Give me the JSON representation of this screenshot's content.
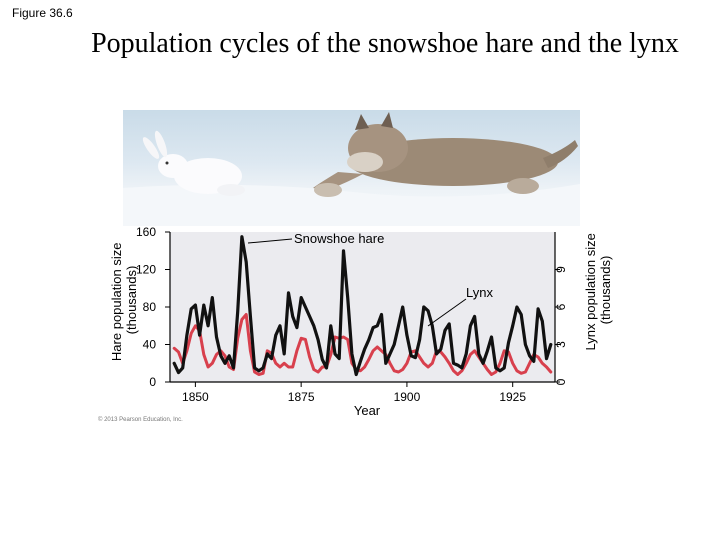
{
  "figure_label": "Figure 36.6",
  "title": "Population cycles of the snowshoe hare and the lynx",
  "copyright": "© 2013 Pearson Education, Inc.",
  "chart_data": {
    "type": "line",
    "xlabel": "Year",
    "ylabel_left": "Hare population size (thousands)",
    "ylabel_right": "Lynx population size (thousands)",
    "xlim": [
      1844,
      1935
    ],
    "ylim_left": [
      0,
      160
    ],
    "ylim_right": [
      0,
      12
    ],
    "x_ticks": [
      1850,
      1875,
      1900,
      1925
    ],
    "y_ticks_left": [
      0,
      40,
      80,
      120,
      160
    ],
    "y_ticks_right": [
      0,
      3,
      6,
      9
    ],
    "annotations": [
      "Snowshoe hare",
      "Lynx"
    ],
    "series": [
      {
        "name": "Snowshoe hare",
        "color": "#111111",
        "axis": "left",
        "x": [
          1845,
          1846,
          1847,
          1848,
          1849,
          1850,
          1851,
          1852,
          1853,
          1854,
          1855,
          1856,
          1857,
          1858,
          1859,
          1860,
          1861,
          1862,
          1863,
          1864,
          1865,
          1866,
          1867,
          1868,
          1869,
          1870,
          1871,
          1872,
          1873,
          1874,
          1875,
          1876,
          1877,
          1878,
          1879,
          1880,
          1881,
          1882,
          1883,
          1884,
          1885,
          1886,
          1887,
          1888,
          1889,
          1890,
          1891,
          1892,
          1893,
          1894,
          1895,
          1896,
          1897,
          1898,
          1899,
          1900,
          1901,
          1902,
          1903,
          1904,
          1905,
          1906,
          1907,
          1908,
          1909,
          1910,
          1911,
          1912,
          1913,
          1914,
          1915,
          1916,
          1917,
          1918,
          1919,
          1920,
          1921,
          1922,
          1923,
          1924,
          1925,
          1926,
          1927,
          1928,
          1929,
          1930,
          1931,
          1932,
          1933,
          1934
        ],
        "values": [
          20,
          10,
          15,
          50,
          78,
          82,
          50,
          82,
          60,
          90,
          48,
          28,
          20,
          28,
          15,
          75,
          155,
          128,
          70,
          15,
          12,
          15,
          30,
          25,
          50,
          60,
          30,
          95,
          70,
          58,
          90,
          80,
          70,
          60,
          45,
          24,
          15,
          60,
          30,
          25,
          140,
          90,
          30,
          8,
          22,
          35,
          45,
          58,
          60,
          72,
          20,
          30,
          40,
          60,
          80,
          50,
          28,
          26,
          45,
          80,
          76,
          60,
          30,
          35,
          55,
          62,
          20,
          18,
          15,
          30,
          60,
          70,
          30,
          20,
          33,
          48,
          15,
          12,
          15,
          42,
          60,
          80,
          72,
          40,
          28,
          22,
          78,
          65,
          25,
          40
        ]
      },
      {
        "name": "Lynx",
        "color": "#d8404d",
        "axis": "right",
        "x": [
          1845,
          1846,
          1847,
          1848,
          1849,
          1850,
          1851,
          1852,
          1853,
          1854,
          1855,
          1856,
          1857,
          1858,
          1859,
          1860,
          1861,
          1862,
          1863,
          1864,
          1865,
          1866,
          1867,
          1868,
          1869,
          1870,
          1871,
          1872,
          1873,
          1874,
          1875,
          1876,
          1877,
          1878,
          1879,
          1880,
          1881,
          1882,
          1883,
          1884,
          1885,
          1886,
          1887,
          1888,
          1889,
          1890,
          1891,
          1892,
          1893,
          1894,
          1895,
          1896,
          1897,
          1898,
          1899,
          1900,
          1901,
          1902,
          1903,
          1904,
          1905,
          1906,
          1907,
          1908,
          1909,
          1910,
          1911,
          1912,
          1913,
          1914,
          1915,
          1916,
          1917,
          1918,
          1919,
          1920,
          1921,
          1922,
          1923,
          1924,
          1925,
          1926,
          1927,
          1928,
          1929,
          1930,
          1931,
          1932,
          1933,
          1934
        ],
        "values": [
          2.7,
          2.4,
          1.5,
          2.5,
          3.9,
          4.5,
          4.1,
          2.2,
          1.2,
          1.5,
          2.2,
          2.5,
          2.1,
          1.2,
          1.0,
          3.5,
          5.0,
          5.4,
          2.5,
          0.8,
          0.6,
          0.7,
          2.5,
          2.3,
          1.5,
          1.2,
          1.5,
          1.2,
          1.2,
          2.5,
          3.5,
          3.4,
          2.0,
          1.0,
          0.8,
          1.2,
          1.2,
          2.2,
          3.6,
          3.5,
          3.6,
          3.4,
          1.5,
          1.0,
          0.9,
          1.2,
          1.8,
          2.5,
          2.8,
          2.5,
          2.2,
          1.5,
          0.9,
          0.8,
          1.0,
          1.5,
          2.4,
          2.5,
          2.0,
          1.5,
          1.2,
          1.5,
          2.5,
          2.4,
          2.0,
          1.5,
          0.9,
          0.6,
          0.9,
          1.5,
          2.2,
          2.5,
          2.0,
          1.5,
          1.0,
          0.6,
          0.8,
          1.5,
          2.5,
          2.4,
          1.5,
          0.9,
          0.7,
          0.8,
          1.5,
          2.2,
          2.0,
          1.5,
          1.2,
          0.8
        ]
      }
    ]
  }
}
